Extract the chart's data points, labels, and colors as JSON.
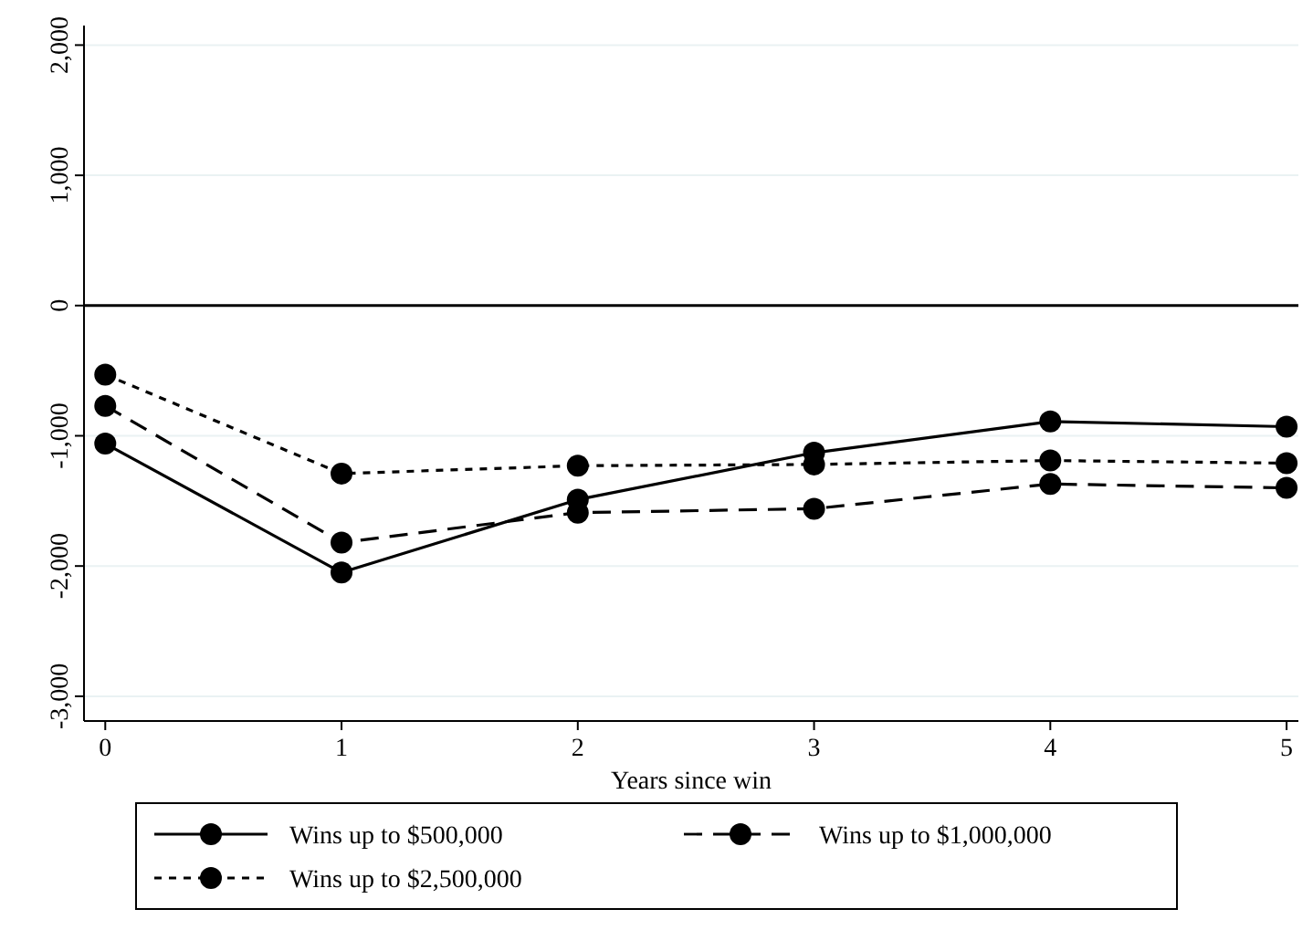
{
  "chart_data": {
    "type": "line",
    "xlabel": "Years since win",
    "x": [
      0,
      1,
      2,
      3,
      4,
      5
    ],
    "xlim": [
      -0.09,
      5.05
    ],
    "xticks": [
      0,
      1,
      2,
      3,
      4,
      5
    ],
    "ylim": [
      -3190,
      2150
    ],
    "yticks": [
      {
        "value": -3000,
        "label": "-3,000"
      },
      {
        "value": -2000,
        "label": "-2,000"
      },
      {
        "value": -1000,
        "label": "-1,000"
      },
      0,
      {
        "value": 1000,
        "label": "1,000"
      },
      {
        "value": 2000,
        "label": "2,000"
      }
    ],
    "grid": "y",
    "legend": "bottom",
    "marker": "circle",
    "ref_lines": [
      {
        "axis": "y",
        "value": 0,
        "color": "#000000"
      }
    ],
    "series": [
      {
        "name": "Wins up to $500,000",
        "color": "#000000",
        "line_style": "solid",
        "values": [
          -1060,
          -2050,
          -1490,
          -1130,
          -890,
          -930
        ]
      },
      {
        "name": "Wins up to $1,000,000",
        "color": "#000000",
        "line_style": "dashed",
        "values": [
          -770,
          -1820,
          -1590,
          -1560,
          -1370,
          -1400
        ]
      },
      {
        "name": "Wins up to $2,500,000",
        "color": "#000000",
        "line_style": "dotted",
        "values": [
          -530,
          -1290,
          -1230,
          -1220,
          -1190,
          -1210
        ]
      }
    ]
  }
}
